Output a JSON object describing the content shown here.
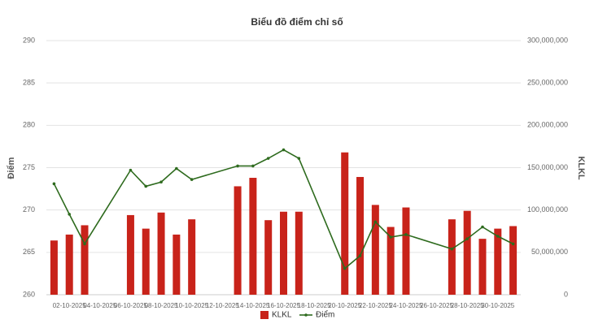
{
  "chart_data": {
    "type": "bar-line",
    "title": "Biểu đồ điểm chỉ số",
    "y_label": "Điểm",
    "y2_label": "KLKL",
    "categories": [
      null,
      "02-10-2025",
      null,
      "04-10-2025",
      null,
      "06-10-2025",
      null,
      "08-10-2025",
      null,
      "10-10-2025",
      null,
      "12-10-2025",
      null,
      "14-10-2025",
      null,
      "16-10-2025",
      null,
      "18-10-2025",
      null,
      "20-10-2025",
      null,
      "22-10-2025",
      null,
      "24-10-2025",
      null,
      "26-10-2025",
      null,
      "28-10-2025",
      null,
      "30-10-2025",
      null
    ],
    "series": [
      {
        "name": "KLKL",
        "type": "bar",
        "axis": "y2",
        "color": "#c8231a",
        "values": [
          64000000,
          71000000,
          82000000,
          null,
          null,
          94000000,
          78000000,
          97000000,
          71000000,
          89000000,
          null,
          null,
          128000000,
          138000000,
          88000000,
          98000000,
          98000000,
          null,
          null,
          168000000,
          139000000,
          106000000,
          80000000,
          103000000,
          null,
          null,
          89000000,
          99000000,
          66000000,
          78000000,
          81000000
        ]
      },
      {
        "name": "Điểm",
        "type": "line",
        "color": "#2e6b1e",
        "span_gaps": true,
        "values": [
          273.1,
          269.5,
          266.0,
          null,
          null,
          274.7,
          272.8,
          273.3,
          274.9,
          273.6,
          null,
          null,
          275.2,
          275.2,
          276.1,
          277.1,
          276.1,
          null,
          null,
          263.1,
          264.6,
          268.6,
          266.8,
          267.1,
          null,
          null,
          265.4,
          266.6,
          268.0,
          266.9,
          266.0
        ]
      }
    ],
    "ylim": [
      260,
      290
    ],
    "yticks": [
      260,
      265,
      270,
      275,
      280,
      285,
      290
    ],
    "y2lim": [
      0,
      300000000
    ],
    "y2ticks": [
      0,
      {
        "value": 50000000,
        "label": "50,000,000"
      },
      {
        "value": 100000000,
        "label": "100,000,000"
      },
      {
        "value": 150000000,
        "label": "150,000,000"
      },
      {
        "value": 200000000,
        "label": "200,000,000"
      },
      {
        "value": 250000000,
        "label": "250,000,000"
      },
      {
        "value": 300000000,
        "label": "300,000,000"
      }
    ],
    "grid": true,
    "legend": "bottom"
  }
}
